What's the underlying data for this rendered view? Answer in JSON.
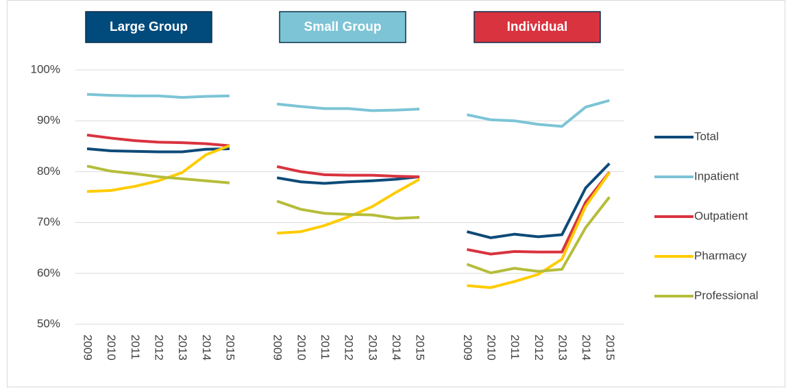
{
  "chart_data": {
    "type": "line",
    "panels": [
      {
        "label": "Large Group",
        "color": "#004a7c",
        "border": "#0d2f4a"
      },
      {
        "label": "Small Group",
        "color": "#7cc4d6",
        "border": "#0d2f4a"
      },
      {
        "label": "Individual",
        "color": "#d9333f",
        "border": "#0d2f4a"
      }
    ],
    "categories": [
      "2009",
      "2010",
      "2011",
      "2012",
      "2013",
      "2014",
      "2015",
      null,
      "2009",
      "2010",
      "2011",
      "2012",
      "2013",
      "2014",
      "2015",
      null,
      "2009",
      "2010",
      "2011",
      "2012",
      "2013",
      "2014",
      "2015"
    ],
    "ylim": [
      50,
      100
    ],
    "yticks": [
      {
        "value": 50,
        "label": "50%"
      },
      {
        "value": 60,
        "label": "60%"
      },
      {
        "value": 70,
        "label": "70%"
      },
      {
        "value": 80,
        "label": "80%"
      },
      {
        "value": 90,
        "label": "90%"
      },
      {
        "value": 100,
        "label": "100%"
      }
    ],
    "grid": true,
    "legend": "right",
    "series": [
      {
        "name": "Total",
        "color": "#0d4a78",
        "values": [
          84.5,
          84.1,
          84.0,
          83.9,
          83.9,
          84.4,
          84.5,
          null,
          78.8,
          78.0,
          77.7,
          78.0,
          78.2,
          78.5,
          79.0,
          null,
          68.2,
          67.0,
          67.7,
          67.2,
          67.6,
          76.8,
          81.6
        ]
      },
      {
        "name": "Inpatient",
        "color": "#7cc4d6",
        "values": [
          95.2,
          95.0,
          94.9,
          94.9,
          94.6,
          94.8,
          94.9,
          null,
          93.3,
          92.8,
          92.4,
          92.4,
          92.0,
          92.1,
          92.3,
          null,
          91.2,
          90.2,
          90.0,
          89.3,
          88.9,
          92.7,
          94.0
        ]
      },
      {
        "name": "Outpatient",
        "color": "#d9333f",
        "values": [
          87.2,
          86.6,
          86.1,
          85.8,
          85.7,
          85.5,
          85.1,
          null,
          81.0,
          80.0,
          79.4,
          79.3,
          79.3,
          79.1,
          79.0,
          null,
          64.7,
          63.8,
          64.3,
          64.2,
          64.2,
          74.0,
          79.9
        ]
      },
      {
        "name": "Pharmacy",
        "color": "#ffcc00",
        "values": [
          76.1,
          76.3,
          77.1,
          78.2,
          79.8,
          83.3,
          85.1,
          null,
          67.9,
          68.2,
          69.4,
          71.1,
          73.1,
          75.9,
          78.5,
          null,
          57.6,
          57.2,
          58.4,
          59.8,
          62.8,
          73.2,
          79.8
        ]
      },
      {
        "name": "Professional",
        "color": "#b5bd3a",
        "values": [
          81.1,
          80.1,
          79.6,
          79.0,
          78.6,
          78.2,
          77.8,
          null,
          74.2,
          72.6,
          71.8,
          71.6,
          71.5,
          70.8,
          71.0,
          null,
          61.8,
          60.1,
          61.0,
          60.4,
          60.8,
          69.0,
          75.0
        ]
      }
    ]
  }
}
